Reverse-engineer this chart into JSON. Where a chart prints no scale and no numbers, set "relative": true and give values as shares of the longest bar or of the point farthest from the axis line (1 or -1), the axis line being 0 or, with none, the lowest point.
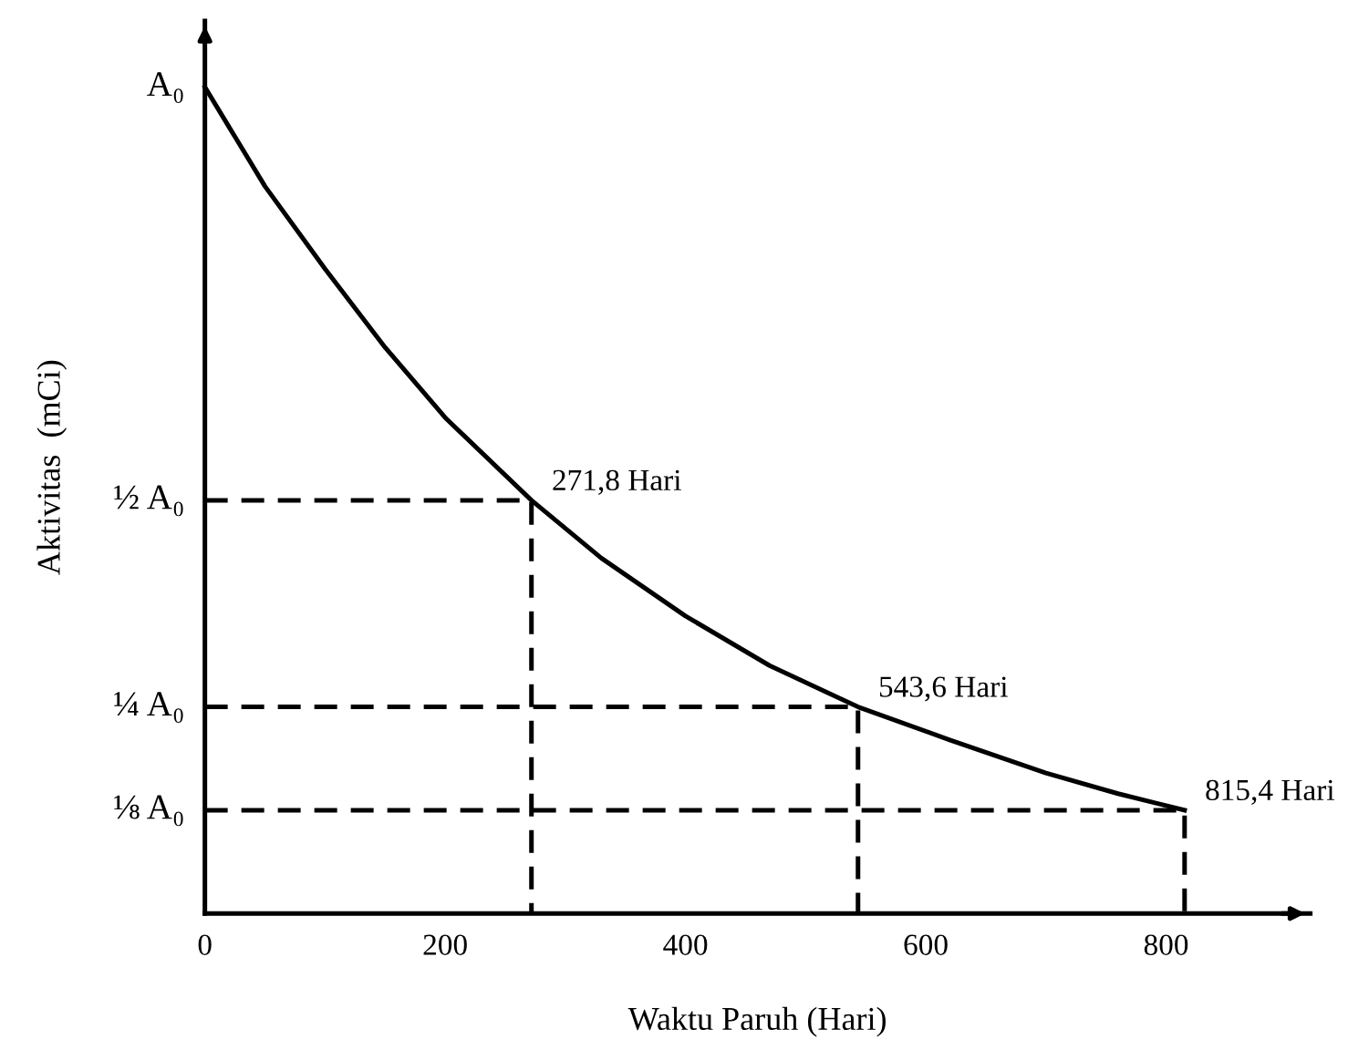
{
  "chart_data": {
    "type": "line",
    "xlabel": "Waktu Paruh (Hari)",
    "ylabel": "Aktivitas  (mCi)",
    "xlim": [
      0,
      920
    ],
    "xticks": [
      0,
      200,
      400,
      600,
      800
    ],
    "relative": true,
    "series": [
      {
        "color": "#000000",
        "line_style": "solid",
        "x": [
          0,
          50,
          100,
          150,
          200,
          271.8,
          330,
          400,
          470,
          543.6,
          620,
          700,
          760,
          815.4
        ],
        "values": [
          1,
          0.88,
          0.78,
          0.685,
          0.6,
          0.5,
          0.43,
          0.36,
          0.3,
          0.25,
          0.21,
          0.17,
          0.145,
          0.125
        ]
      },
      {
        "color": "#000000",
        "line_style": "dashed",
        "x": [
          0,
          271.8,
          271.8
        ],
        "values": [
          0.5,
          0.5,
          0
        ]
      },
      {
        "color": "#000000",
        "line_style": "dashed",
        "x": [
          0,
          543.6,
          543.6
        ],
        "values": [
          0.25,
          0.25,
          0
        ]
      },
      {
        "color": "#000000",
        "line_style": "dashed",
        "x": [
          0,
          815.4,
          815.4
        ],
        "values": [
          0.125,
          0.125,
          0
        ]
      }
    ],
    "annotations": [
      {
        "text": "A₀",
        "x": 0,
        "y": 1
      },
      {
        "text": "½ A₀",
        "x": 0,
        "y": 0.5
      },
      {
        "text": "¼ A₀",
        "x": 0,
        "y": 0.25
      },
      {
        "text": "⅛ A₀",
        "x": 0,
        "y": 0.125
      },
      {
        "text": "271,8 Hari",
        "x": 271.8,
        "y": 0.5
      },
      {
        "text": "543,6 Hari",
        "x": 543.6,
        "y": 0.25
      },
      {
        "text": "815,4 Hari",
        "x": 815.4,
        "y": 0.125
      }
    ],
    "grid": false,
    "legend": false
  }
}
